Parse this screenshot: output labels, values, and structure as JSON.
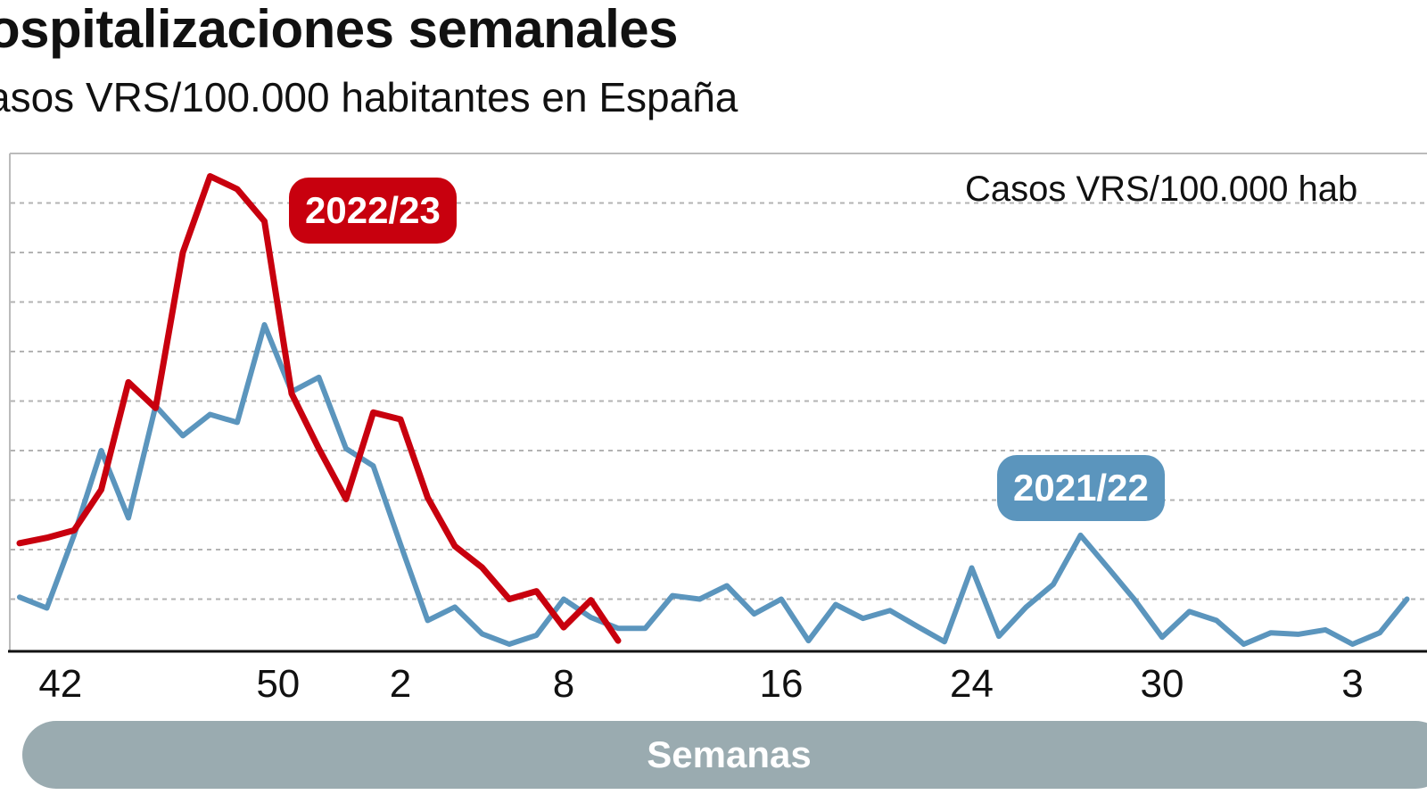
{
  "title": "ospitalizaciones semanales",
  "subtitle": "asos VRS/100.000 habitantes en España",
  "chart_data": {
    "type": "line",
    "title": "ospitalizaciones semanales",
    "subtitle": "asos VRS/100.000 habitantes en España",
    "ylabel": "Casos VRS/100.000 hab",
    "xlabel": "Semanas",
    "ylim": [
      0,
      10
    ],
    "grid": true,
    "x_tick_labels": [
      {
        "week_index": 1.5,
        "label": "42"
      },
      {
        "week_index": 9.5,
        "label": "50"
      },
      {
        "week_index": 14,
        "label": "2"
      },
      {
        "week_index": 20,
        "label": "8"
      },
      {
        "week_index": 28,
        "label": "16"
      },
      {
        "week_index": 35,
        "label": "24"
      },
      {
        "week_index": 42,
        "label": "30"
      },
      {
        "week_index": 49,
        "label": "3"
      }
    ],
    "series": [
      {
        "name": "2021/22",
        "color": "#5b95bd",
        "values": [
          1.04,
          0.82,
          2.29,
          4.0,
          2.64,
          4.9,
          4.3,
          4.73,
          4.57,
          6.54,
          5.19,
          5.48,
          4.04,
          3.69,
          2.11,
          0.57,
          0.84,
          0.3,
          0.09,
          0.27,
          1.0,
          0.63,
          0.41,
          0.41,
          1.07,
          1.0,
          1.27,
          0.7,
          1.0,
          0.16,
          0.89,
          0.61,
          0.77,
          0.45,
          0.14,
          1.63,
          0.25,
          0.84,
          1.3,
          2.29,
          1.64,
          0.98,
          0.23,
          0.75,
          0.57,
          0.09,
          0.32,
          0.29,
          0.38,
          0.09,
          0.32,
          1.0
        ]
      },
      {
        "name": "2022/23",
        "color": "#c8000e",
        "values": [
          2.13,
          2.24,
          2.39,
          3.21,
          5.38,
          4.86,
          8.0,
          9.54,
          9.28,
          8.63,
          5.15,
          4.04,
          3.02,
          4.77,
          4.63,
          3.05,
          2.07,
          1.64,
          1.0,
          1.16,
          0.43,
          0.98,
          0.16
        ]
      }
    ]
  }
}
